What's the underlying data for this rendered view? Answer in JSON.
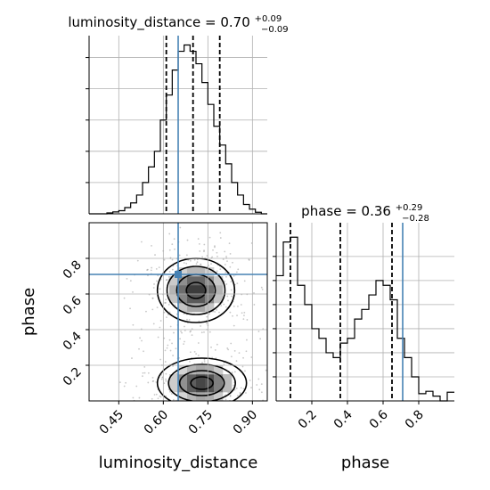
{
  "chart_data": {
    "type": "corner",
    "parameters": [
      "luminosity_distance",
      "phase"
    ],
    "truths": [
      0.65,
      0.71
    ],
    "colors": {
      "truth": "#4682b4",
      "hist": "#000000",
      "grid": "#b0b0b0"
    },
    "panels": {
      "luminosity_distance_hist": {
        "title_prefix": "luminosity_distance = 0.70",
        "title_plus": "+0.09",
        "title_minus": "−0.09",
        "quantiles": [
          0.61,
          0.7,
          0.79
        ],
        "xlim": [
          0.35,
          0.95
        ],
        "bins": [
          0.35,
          0.37,
          0.39,
          0.41,
          0.43,
          0.45,
          0.47,
          0.49,
          0.51,
          0.53,
          0.55,
          0.57,
          0.59,
          0.61,
          0.63,
          0.65,
          0.67,
          0.69,
          0.71,
          0.73,
          0.75,
          0.77,
          0.79,
          0.81,
          0.83,
          0.85,
          0.87,
          0.89,
          0.91,
          0.93,
          0.95
        ],
        "counts": [
          0,
          0,
          0,
          0.3,
          0.6,
          1,
          2,
          3.5,
          6,
          10,
          15,
          20,
          30,
          38,
          46,
          52,
          54,
          52,
          48,
          42,
          35,
          28,
          22,
          16,
          10,
          6,
          3,
          1.5,
          0.5,
          0
        ],
        "ylim": [
          0,
          57
        ]
      },
      "phase_hist": {
        "title_prefix": "phase = 0.36",
        "title_plus": "+0.29",
        "title_minus": "−0.28",
        "quantiles": [
          0.08,
          0.36,
          0.65
        ],
        "xlim": [
          0,
          1
        ],
        "bins": [
          0,
          0.04,
          0.08,
          0.12,
          0.16,
          0.2,
          0.24,
          0.28,
          0.32,
          0.36,
          0.4,
          0.44,
          0.48,
          0.52,
          0.56,
          0.6,
          0.64,
          0.68,
          0.72,
          0.76,
          0.8,
          0.84,
          0.88,
          0.92,
          0.96,
          1.0
        ],
        "counts": [
          26,
          33,
          34,
          24,
          20,
          15,
          13,
          10,
          9,
          12,
          13,
          17,
          19,
          22,
          25,
          24,
          21,
          13,
          9,
          5,
          1.5,
          2,
          1,
          0,
          1.8
        ],
        "ylim": [
          0,
          37
        ]
      },
      "joint": {
        "xlim": [
          0.35,
          0.95
        ],
        "ylim": [
          0,
          1
        ],
        "modes": [
          {
            "x": 0.71,
            "y": 0.62,
            "sx": 0.065,
            "sy": 0.09
          },
          {
            "x": 0.73,
            "y": 0.1,
            "sx": 0.075,
            "sy": 0.07
          }
        ]
      }
    },
    "axes": {
      "x_label_1": "luminosity_distance",
      "x_label_2": "phase",
      "y_label": "phase",
      "x_ticks_1": [
        "0.45",
        "0.60",
        "0.75",
        "0.90"
      ],
      "x_ticks_1_values": [
        0.45,
        0.6,
        0.75,
        0.9
      ],
      "x_ticks_2": [
        "0.2",
        "0.4",
        "0.6",
        "0.8"
      ],
      "x_ticks_2_values": [
        0.2,
        0.4,
        0.6,
        0.8
      ],
      "y_ticks": [
        "0.2",
        "0.4",
        "0.6",
        "0.8"
      ],
      "y_ticks_values": [
        0.2,
        0.4,
        0.6,
        0.8
      ]
    },
    "grid": true
  }
}
